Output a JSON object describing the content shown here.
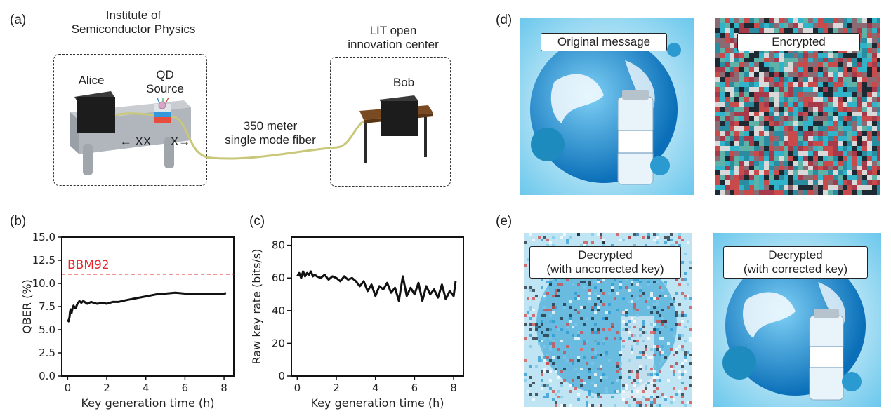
{
  "panels": {
    "a": "(a)",
    "b": "(b)",
    "c": "(c)",
    "d": "(d)",
    "e": "(e)"
  },
  "setup": {
    "left_site": [
      "Institute of",
      "Semiconductor Physics"
    ],
    "right_site": [
      "LIT open",
      "innovation center"
    ],
    "alice": "Alice",
    "qd_source": [
      "QD",
      "Source"
    ],
    "bob": "Bob",
    "xx_label": "← XX",
    "x_label": "X→",
    "fiber": [
      "350 meter",
      "single mode fiber"
    ]
  },
  "images": {
    "original": "Original message",
    "encrypted": "Encrypted",
    "decrypted_uncorrected": [
      "Decrypted",
      "(with uncorrected key)"
    ],
    "decrypted_corrected": [
      "Decrypted",
      "(with corrected key)"
    ]
  },
  "chart_data": [
    {
      "type": "line",
      "panel": "b",
      "xlabel": "Key generation time (h)",
      "ylabel": "QBER (%)",
      "xlim": [
        -0.3,
        8.5
      ],
      "ylim": [
        0,
        15
      ],
      "xticks": [
        0,
        2,
        4,
        6,
        8
      ],
      "yticks": [
        0.0,
        2.5,
        5.0,
        7.5,
        10.0,
        12.5,
        15.0
      ],
      "ytick_labels": [
        "0.0",
        "2.5",
        "5.0",
        "7.5",
        "10.0",
        "12.5",
        "15.0"
      ],
      "threshold": {
        "name": "BBM92",
        "value": 11.0,
        "color": "#e8262b"
      },
      "series": [
        {
          "color": "#111111",
          "x": [
            0.0,
            0.05,
            0.1,
            0.12,
            0.15,
            0.2,
            0.25,
            0.3,
            0.4,
            0.5,
            0.6,
            0.7,
            0.8,
            1.0,
            1.2,
            1.5,
            1.8,
            2.0,
            2.3,
            2.6,
            3.0,
            3.5,
            4.0,
            4.5,
            5.0,
            5.5,
            6.0,
            6.5,
            7.0,
            7.5,
            8.0,
            8.1
          ],
          "y": [
            6.1,
            5.9,
            6.4,
            6.9,
            7.2,
            6.8,
            7.3,
            7.6,
            7.3,
            7.8,
            8.1,
            7.9,
            8.1,
            7.8,
            8.0,
            7.8,
            7.9,
            7.8,
            8.0,
            8.0,
            8.2,
            8.4,
            8.6,
            8.8,
            8.9,
            9.0,
            8.9,
            8.9,
            8.9,
            8.9,
            8.9,
            8.95
          ]
        }
      ]
    },
    {
      "type": "line",
      "panel": "c",
      "xlabel": "Key generation time (h)",
      "ylabel": "Raw key rate (bits/s)",
      "xlim": [
        -0.3,
        8.5
      ],
      "ylim": [
        0,
        85
      ],
      "xticks": [
        0,
        2,
        4,
        6,
        8
      ],
      "yticks": [
        0,
        20,
        40,
        60,
        80
      ],
      "ytick_labels": [
        "0",
        "20",
        "40",
        "60",
        "80"
      ],
      "series": [
        {
          "color": "#111111",
          "x": [
            0.0,
            0.1,
            0.2,
            0.3,
            0.4,
            0.5,
            0.6,
            0.7,
            0.8,
            0.9,
            1.0,
            1.2,
            1.4,
            1.6,
            1.8,
            2.0,
            2.2,
            2.4,
            2.6,
            2.8,
            3.0,
            3.2,
            3.4,
            3.6,
            3.8,
            4.0,
            4.2,
            4.4,
            4.6,
            4.8,
            5.0,
            5.2,
            5.4,
            5.6,
            5.8,
            6.0,
            6.2,
            6.4,
            6.6,
            6.8,
            7.0,
            7.2,
            7.4,
            7.6,
            7.8,
            8.0,
            8.1
          ],
          "y": [
            61,
            63,
            60,
            64,
            61,
            63,
            62,
            64,
            61,
            62,
            61,
            60,
            62,
            59,
            61,
            60,
            58,
            61,
            59,
            60,
            58,
            55,
            58,
            52,
            56,
            49,
            55,
            53,
            57,
            51,
            54,
            46,
            61,
            49,
            54,
            50,
            57,
            46,
            55,
            50,
            53,
            48,
            56,
            47,
            52,
            49,
            58
          ]
        }
      ]
    }
  ]
}
